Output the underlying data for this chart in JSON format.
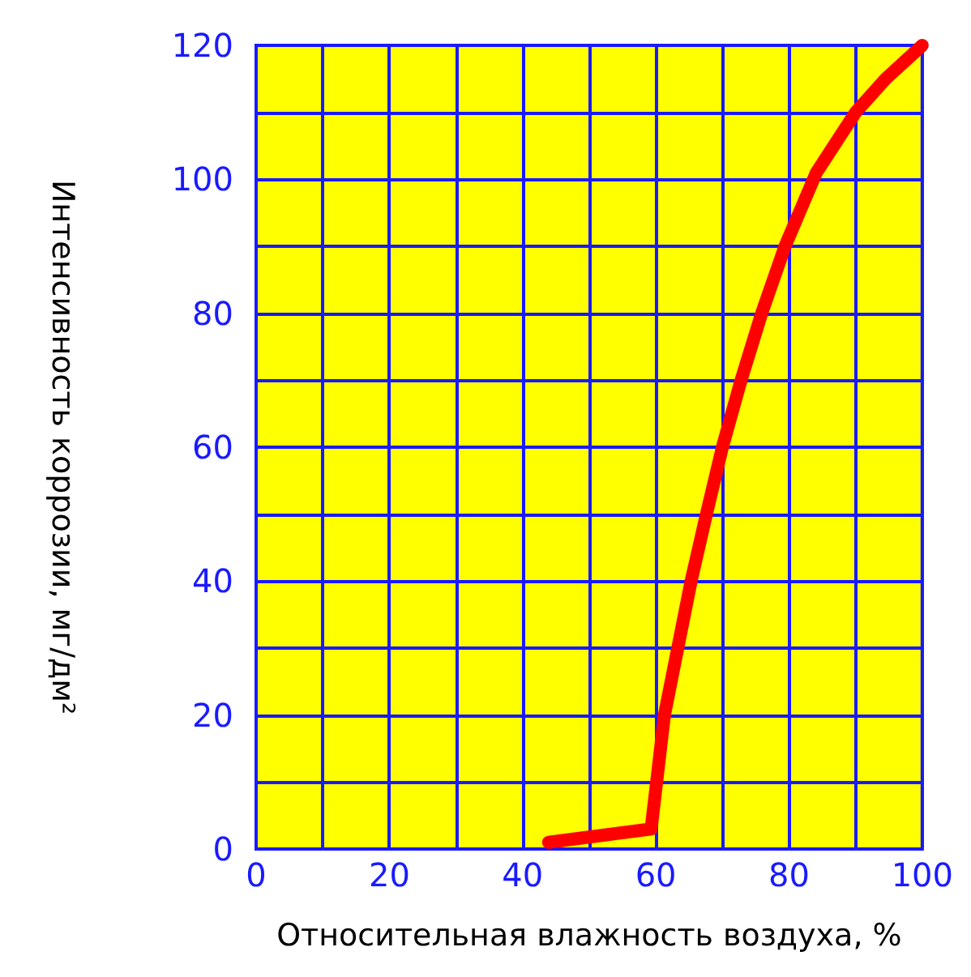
{
  "chart_data": {
    "type": "line",
    "xlabel": "Относительная влажность воздуха, %",
    "ylabel": "Интенсивность коррозии, мг/дм²",
    "x": [
      43.9,
      59.3,
      61.3,
      63.3,
      65.3,
      67.6,
      70,
      72.8,
      75.9,
      79.4,
      84.1,
      90,
      94.5,
      100
    ],
    "series": [
      {
        "color": "#ff0000",
        "values": [
          1,
          3,
          20,
          30,
          40,
          50,
          60,
          70,
          80,
          90,
          101,
          110,
          115,
          120
        ]
      }
    ],
    "xlim": [
      0,
      100
    ],
    "xticks": [
      0,
      {
        "value": 10,
        "label": null
      },
      20,
      {
        "value": 30,
        "label": null
      },
      40,
      {
        "value": 50,
        "label": null
      },
      60,
      {
        "value": 70,
        "label": null
      },
      80,
      {
        "value": 90,
        "label": null
      },
      100
    ],
    "ylim": [
      0,
      120
    ],
    "yticks": [
      0,
      {
        "value": 10,
        "label": null
      },
      20,
      {
        "value": 30,
        "label": null
      },
      40,
      {
        "value": 50,
        "label": null
      },
      60,
      {
        "value": 70,
        "label": null
      },
      80,
      {
        "value": 90,
        "label": null
      },
      100,
      {
        "value": 110,
        "label": null
      },
      120
    ],
    "grid": true,
    "line_style": "solid"
  }
}
